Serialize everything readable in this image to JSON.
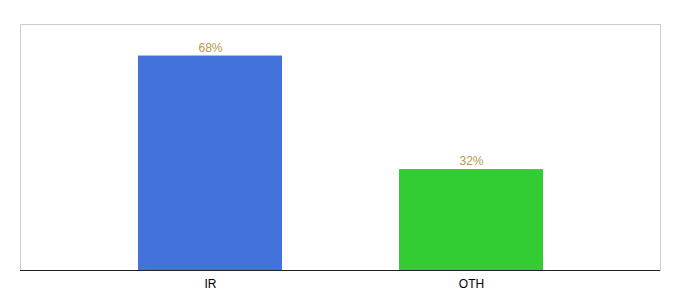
{
  "chart_data": {
    "type": "bar",
    "categories": [
      "IR",
      "OTH"
    ],
    "values": [
      68,
      32
    ],
    "colors": [
      "#4472db",
      "#33cc33"
    ],
    "ylim": [
      0,
      78
    ],
    "data_labels": true,
    "value_labels": [
      "68%",
      "32%"
    ],
    "tick_labels": "x"
  }
}
